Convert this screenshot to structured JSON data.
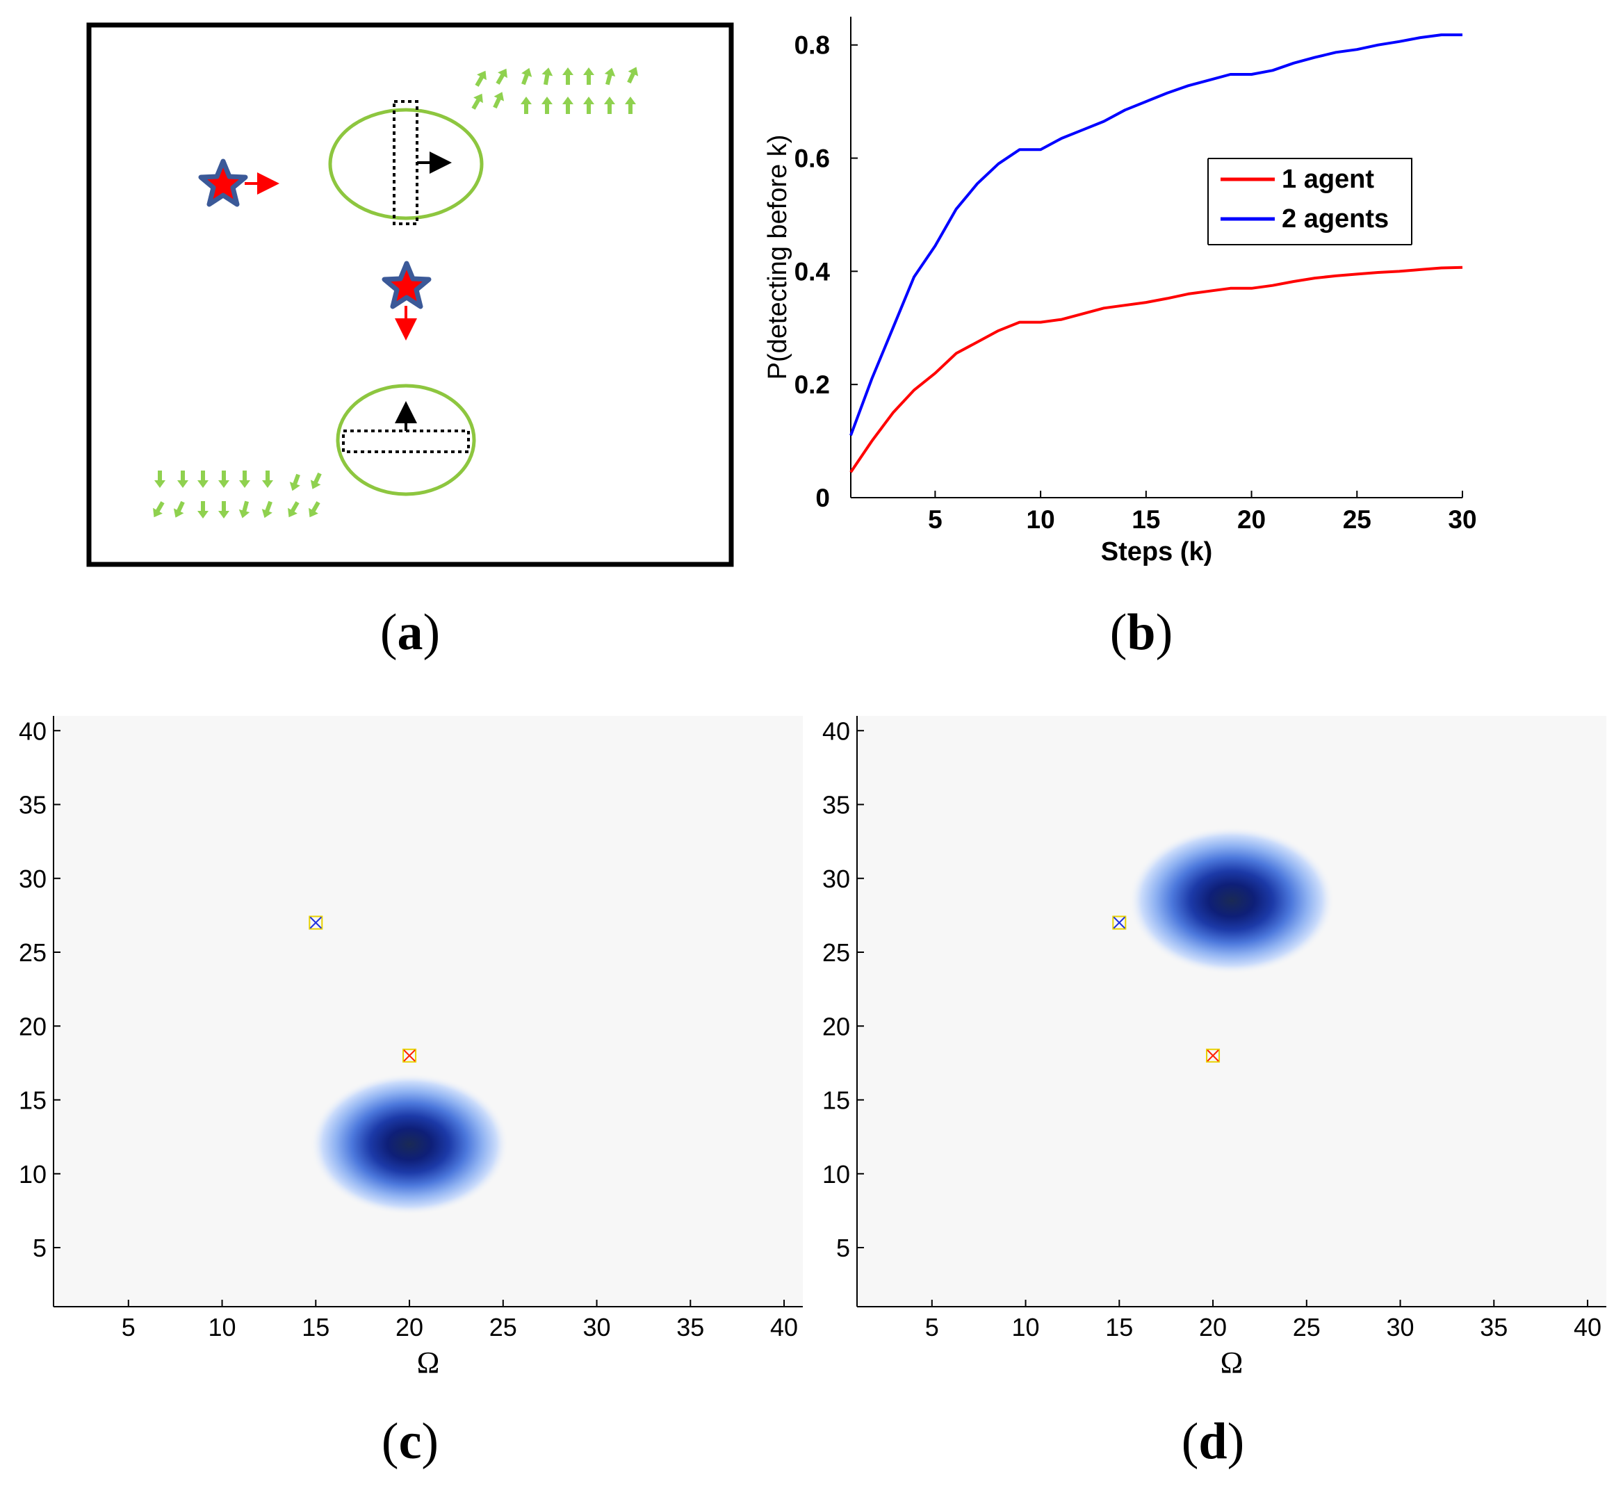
{
  "panels": {
    "a": {
      "label": "(a)",
      "label_letter": "a"
    },
    "b": {
      "label": "(b)",
      "label_letter": "b"
    },
    "c": {
      "label": "(c)",
      "label_letter": "c"
    },
    "d": {
      "label": "(d)",
      "label_letter": "d"
    }
  },
  "colors": {
    "agent1": "#ff0000",
    "agent2": "#0000ff",
    "ellipse": "#8dc63f",
    "arrows_green": "#8fd14f",
    "star_fill": "#ff0000",
    "star_outline": "#3b5998",
    "heat_core": "#0b1a6b",
    "heat_edge": "#b8d0ff",
    "background_map": "#f7f7f7"
  },
  "chart_data": [
    {
      "panel": "b",
      "type": "line",
      "xlabel": "Steps (k)",
      "ylabel": "P(detecting before k)",
      "xlim": [
        1,
        30
      ],
      "ylim": [
        0,
        0.85
      ],
      "xticks": [
        5,
        10,
        15,
        20,
        25,
        30
      ],
      "yticks": [
        0,
        0.2,
        0.4,
        0.6,
        0.8
      ],
      "ytick_labels": [
        "0",
        "0.2",
        "0.4",
        "0.6",
        "0.8"
      ],
      "legend_position": "right-middle",
      "grid": false,
      "series": [
        {
          "name": "1 agent",
          "color": "#ff0000",
          "x": [
            1,
            2,
            3,
            4,
            5,
            6,
            7,
            8,
            9,
            10,
            11,
            12,
            13,
            14,
            15,
            16,
            17,
            18,
            19,
            20,
            21,
            22,
            23,
            24,
            25,
            26,
            27,
            28,
            29,
            30
          ],
          "values": [
            0.045,
            0.1,
            0.15,
            0.19,
            0.22,
            0.255,
            0.275,
            0.295,
            0.31,
            0.31,
            0.315,
            0.325,
            0.335,
            0.34,
            0.345,
            0.352,
            0.36,
            0.365,
            0.37,
            0.37,
            0.375,
            0.382,
            0.388,
            0.392,
            0.395,
            0.398,
            0.4,
            0.403,
            0.406,
            0.407
          ]
        },
        {
          "name": "2 agents",
          "color": "#0000ff",
          "x": [
            1,
            2,
            3,
            4,
            5,
            6,
            7,
            8,
            9,
            10,
            11,
            12,
            13,
            14,
            15,
            16,
            17,
            18,
            19,
            20,
            21,
            22,
            23,
            24,
            25,
            26,
            27,
            28,
            29,
            30
          ],
          "values": [
            0.11,
            0.21,
            0.3,
            0.39,
            0.445,
            0.51,
            0.555,
            0.59,
            0.615,
            0.615,
            0.635,
            0.65,
            0.665,
            0.685,
            0.7,
            0.715,
            0.728,
            0.738,
            0.748,
            0.748,
            0.755,
            0.768,
            0.778,
            0.787,
            0.792,
            0.8,
            0.806,
            0.813,
            0.818,
            0.818
          ]
        }
      ]
    },
    {
      "panel": "c",
      "type": "heatmap",
      "xlabel": "Ω",
      "xlim": [
        1,
        41
      ],
      "ylim": [
        1,
        41
      ],
      "xticks": [
        5,
        10,
        15,
        20,
        25,
        30,
        35,
        40
      ],
      "yticks": [
        5,
        10,
        15,
        20,
        25,
        30,
        35,
        40
      ],
      "blob_center": [
        20,
        12
      ],
      "blob_radius": [
        5.3,
        4.8
      ],
      "markers": [
        {
          "x": 15,
          "y": 27,
          "color": "blue"
        },
        {
          "x": 20,
          "y": 18,
          "color": "red"
        }
      ]
    },
    {
      "panel": "d",
      "type": "heatmap",
      "xlabel": "Ω",
      "xlim": [
        1,
        41
      ],
      "ylim": [
        1,
        41
      ],
      "xticks": [
        5,
        10,
        15,
        20,
        25,
        30,
        35,
        40
      ],
      "yticks": [
        5,
        10,
        15,
        20,
        25,
        30,
        35,
        40
      ],
      "blob_center": [
        21,
        28.5
      ],
      "blob_radius": [
        5.5,
        5.0
      ],
      "markers": [
        {
          "x": 15,
          "y": 27,
          "color": "blue"
        },
        {
          "x": 20,
          "y": 18,
          "color": "red"
        }
      ]
    }
  ]
}
